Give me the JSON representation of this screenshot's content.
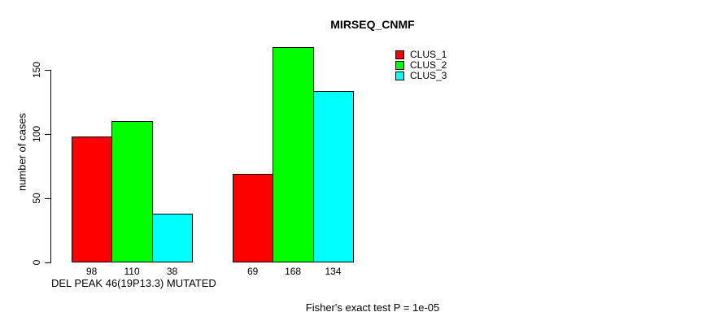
{
  "title": "MIRSEQ_CNMF",
  "footer_annotation": "Fisher's exact test P = 1e-05",
  "colors": {
    "background": "#ffffff",
    "axis": "#000000",
    "bar_border": "#000000"
  },
  "chart_data": {
    "type": "bar",
    "title": "MIRSEQ_CNMF",
    "xlabel": "DEL PEAK 46(19P13.3) MUTATED",
    "ylabel": "number of cases",
    "categories": [
      "",
      ""
    ],
    "series": [
      {
        "name": "CLUS_1",
        "color": "#ff0000",
        "values": [
          98,
          69
        ]
      },
      {
        "name": "CLUS_2",
        "color": "#00ff00",
        "values": [
          110,
          168
        ]
      },
      {
        "name": "CLUS_3",
        "color": "#00ffff",
        "values": [
          38,
          134
        ]
      }
    ],
    "bar_value_labels": [
      [
        98,
        110,
        38
      ],
      [
        69,
        168,
        134
      ]
    ],
    "yticks": [
      0,
      50,
      100,
      150
    ],
    "ylim": [
      0,
      168
    ],
    "grid": false,
    "legend_position": "top-right",
    "annotation": "Fisher's exact test P = 1e-05"
  }
}
